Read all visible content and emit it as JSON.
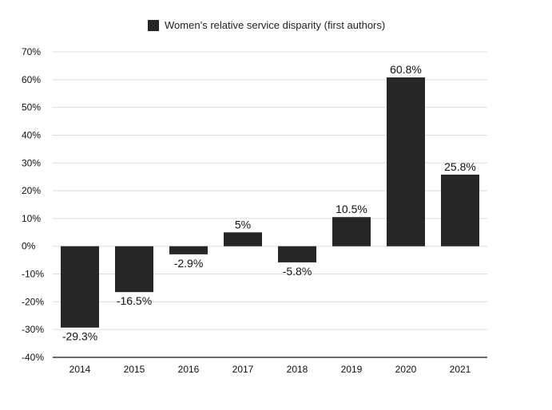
{
  "chart_data": {
    "type": "bar",
    "categories": [
      "2014",
      "2015",
      "2016",
      "2017",
      "2018",
      "2019",
      "2020",
      "2021"
    ],
    "series": [
      {
        "name": "Women's relative service disparity (first authors)",
        "values": [
          -29.3,
          -16.5,
          -2.9,
          5,
          -5.8,
          10.5,
          60.8,
          25.8
        ],
        "labels": [
          "-29.3%",
          "-16.5%",
          "-2.9%",
          "5%",
          "-5.8%",
          "10.5%",
          "60.8%",
          "25.8%"
        ],
        "color": "#262626"
      }
    ],
    "title": "",
    "xlabel": "",
    "ylabel": "",
    "ylim": [
      -40,
      70
    ],
    "yticks": [
      -40,
      -30,
      -20,
      -10,
      0,
      10,
      20,
      30,
      40,
      50,
      60,
      70
    ],
    "ytick_labels": [
      "-40%",
      "-30%",
      "-20%",
      "-10%",
      "0%",
      "10%",
      "20%",
      "30%",
      "40%",
      "50%",
      "60%",
      "70%"
    ],
    "grid": true,
    "legend": {
      "position": "top-center",
      "label": "Women’s relative service disparity (first authors)"
    }
  }
}
